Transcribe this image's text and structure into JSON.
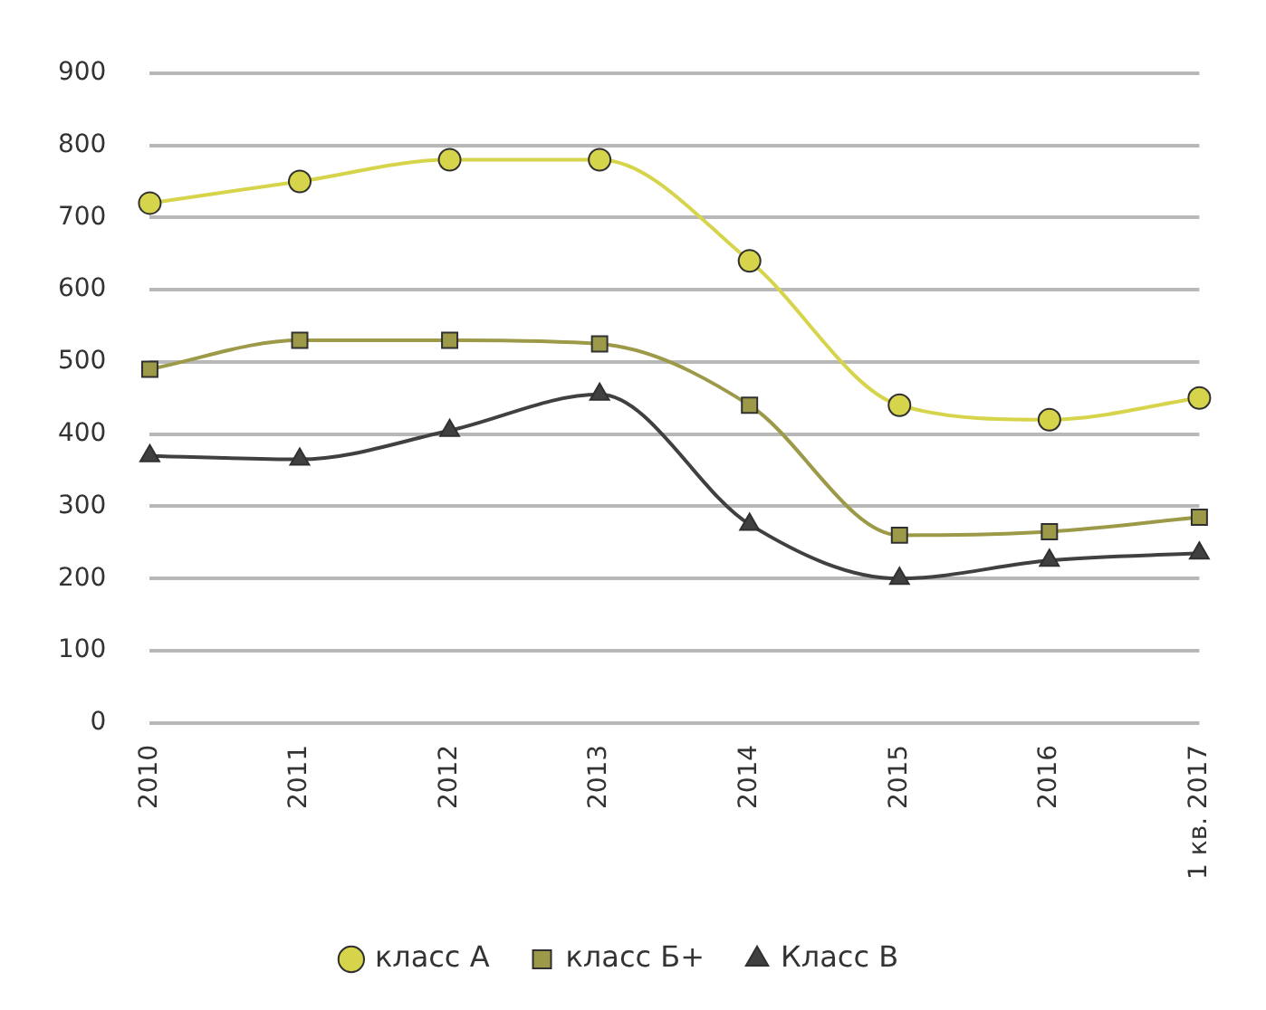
{
  "chart_data": {
    "type": "line",
    "categories": [
      "2010",
      "2011",
      "2012",
      "2013",
      "2014",
      "2015",
      "2016",
      "1 кв. 2017"
    ],
    "series": [
      {
        "name": "класс А",
        "color": "#d6d44a",
        "marker": "circle",
        "values": [
          720,
          750,
          780,
          780,
          640,
          440,
          420,
          450
        ]
      },
      {
        "name": "класс Б+",
        "color": "#9c9a48",
        "marker": "square",
        "values": [
          490,
          530,
          530,
          525,
          440,
          260,
          265,
          285
        ]
      },
      {
        "name": "Класс В",
        "color": "#404040",
        "marker": "triangle",
        "values": [
          370,
          365,
          405,
          455,
          275,
          200,
          225,
          235
        ]
      }
    ],
    "ylim": [
      0,
      900
    ],
    "yticks": [
      0,
      100,
      200,
      300,
      400,
      500,
      600,
      700,
      800,
      900
    ],
    "grid": "y",
    "legend": "bottom"
  }
}
